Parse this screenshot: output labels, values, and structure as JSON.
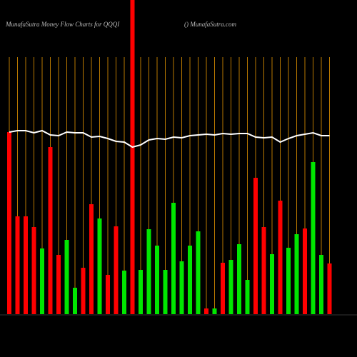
{
  "chart_data": {
    "type": "bar",
    "title": "MunafaSutra  Money Flow  Charts for QQQI",
    "subtitle": "() MunafaSutra.com",
    "ylim": [
      0,
      440
    ],
    "values": [
      255,
      137,
      137,
      122,
      92,
      234,
      83,
      104,
      37,
      65,
      154,
      134,
      55,
      123,
      61,
      440,
      62,
      119,
      96,
      62,
      156,
      74,
      96,
      116,
      8,
      8,
      72,
      76,
      98,
      48,
      191,
      122,
      84,
      159,
      93,
      112,
      120,
      213,
      83,
      71
    ],
    "colors": [
      "#ff0000",
      "#ff0000",
      "#ff0000",
      "#ff0000",
      "#00e600",
      "#ff0000",
      "#ff0000",
      "#00e600",
      "#00e600",
      "#ff0000",
      "#ff0000",
      "#00e600",
      "#ff0000",
      "#ff0000",
      "#00e600",
      "#ff0000",
      "#00e600",
      "#00e600",
      "#00e600",
      "#00e600",
      "#00e600",
      "#00e600",
      "#00e600",
      "#00e600",
      "#ff0000",
      "#00e600",
      "#ff0000",
      "#00e600",
      "#00e600",
      "#00e600",
      "#ff0000",
      "#ff0000",
      "#00e600",
      "#ff0000",
      "#00e600",
      "#00e600",
      "#ff0000",
      "#00e600",
      "#00e600",
      "#ff0000"
    ],
    "line_values": [
      255,
      257,
      257,
      254,
      257,
      251,
      250,
      255,
      254,
      254,
      248,
      249,
      246,
      242,
      241,
      234,
      237,
      244,
      246,
      245,
      248,
      247,
      250,
      251,
      252,
      251,
      253,
      252,
      253,
      253,
      248,
      247,
      248,
      241,
      246,
      250,
      252,
      254,
      250,
      250
    ],
    "line_color": "#ffffff"
  }
}
